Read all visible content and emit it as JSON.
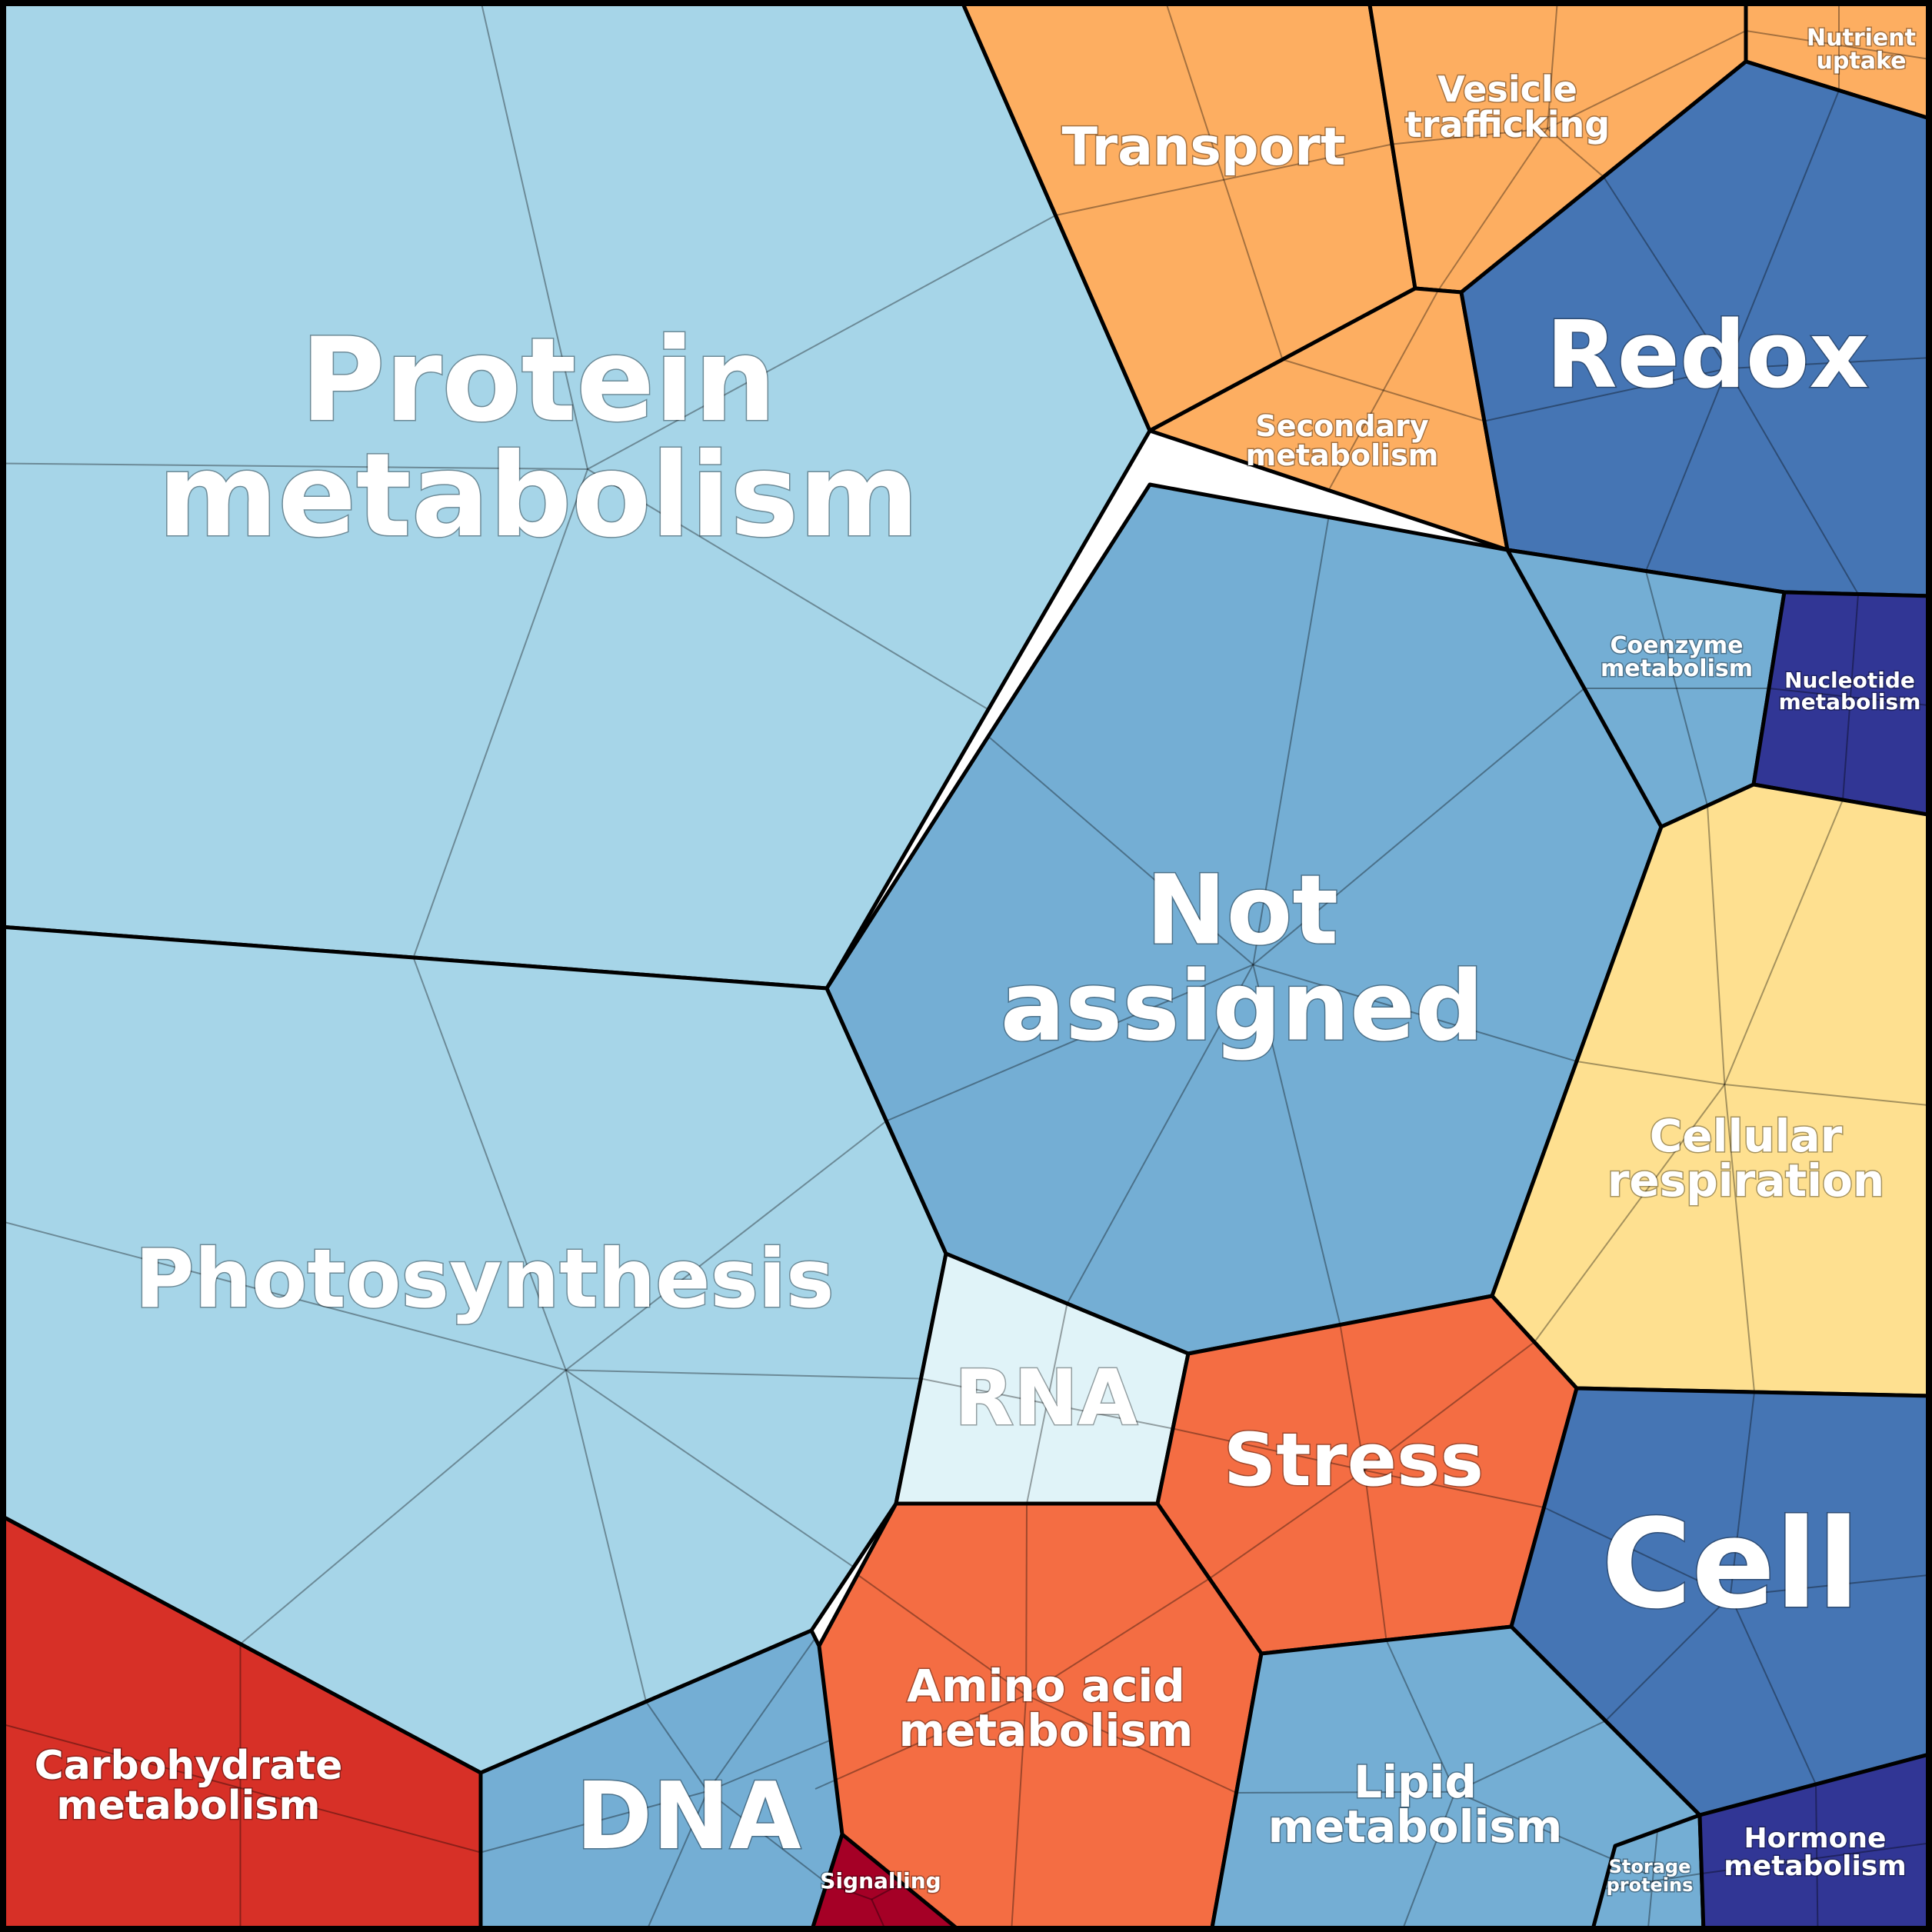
{
  "categories": [
    {
      "id": "protein",
      "lines": [
        "Protein",
        "metabolism"
      ],
      "color": "#a6d5e8"
    },
    {
      "id": "photosynthesis",
      "lines": [
        "Photosynthesis"
      ],
      "color": "#a6d5e8"
    },
    {
      "id": "not-assigned",
      "lines": [
        "Not",
        "assigned"
      ],
      "color": "#74aed4"
    },
    {
      "id": "transport",
      "lines": [
        "Transport"
      ],
      "color": "#fdae61"
    },
    {
      "id": "vesicle",
      "lines": [
        "Vesicle",
        "trafficking"
      ],
      "color": "#fdae61"
    },
    {
      "id": "nutrient",
      "lines": [
        "Nutrient",
        "uptake"
      ],
      "color": "#fdae61"
    },
    {
      "id": "secondary",
      "lines": [
        "Secondary",
        "metabolism"
      ],
      "color": "#fdae61"
    },
    {
      "id": "redox",
      "lines": [
        "Redox"
      ],
      "color": "#4575b4"
    },
    {
      "id": "coenzyme",
      "lines": [
        "Coenzyme",
        "metabolism"
      ],
      "color": "#74aed4"
    },
    {
      "id": "nucleotide",
      "lines": [
        "Nucleotide",
        "metabolism"
      ],
      "color": "#313695"
    },
    {
      "id": "respiration",
      "lines": [
        "Cellular",
        "respiration"
      ],
      "color": "#fee090"
    },
    {
      "id": "rna",
      "lines": [
        "RNA"
      ],
      "color": "#e0f3f8"
    },
    {
      "id": "stress",
      "lines": [
        "Stress"
      ],
      "color": "#f46d43"
    },
    {
      "id": "cell",
      "lines": [
        "Cell"
      ],
      "color": "#4575b4"
    },
    {
      "id": "amino",
      "lines": [
        "Amino acid",
        "metabolism"
      ],
      "color": "#f46d43"
    },
    {
      "id": "carbohydrate",
      "lines": [
        "Carbohydrate",
        "metabolism"
      ],
      "color": "#d73027"
    },
    {
      "id": "dna",
      "lines": [
        "DNA"
      ],
      "color": "#74aed4"
    },
    {
      "id": "signalling",
      "lines": [
        "Signalling"
      ],
      "color": "#a50026"
    },
    {
      "id": "lipid",
      "lines": [
        "Lipid",
        "metabolism"
      ],
      "color": "#74aed4"
    },
    {
      "id": "storage",
      "lines": [
        "Storage",
        "proteins"
      ],
      "color": "#74aed4"
    },
    {
      "id": "hormone",
      "lines": [
        "Hormone",
        "metabolism"
      ],
      "color": "#313695"
    }
  ]
}
